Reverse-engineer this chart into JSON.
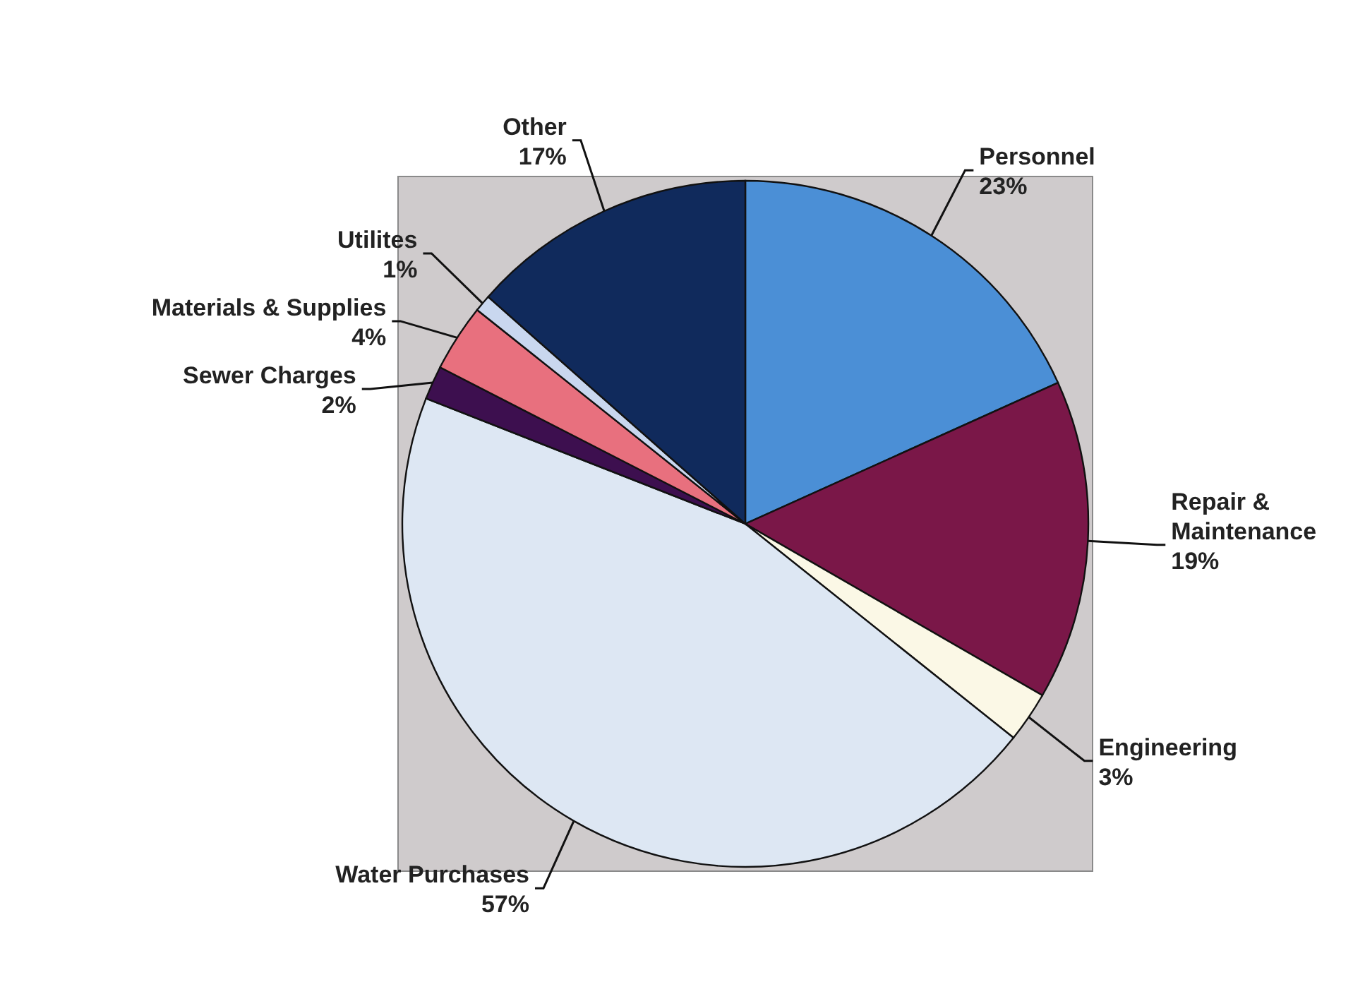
{
  "chart_data": {
    "type": "pie",
    "categories": [
      "Personnel",
      "Repair & Maintenance",
      "Engineering",
      "Water Purchases",
      "Sewer Charges",
      "Materials & Supplies",
      "Utilites",
      "Other"
    ],
    "values": [
      23,
      19,
      3,
      57,
      2,
      4,
      1,
      17
    ],
    "colors": [
      "#4b8fd6",
      "#7a1748",
      "#fbf8e6",
      "#dde7f3",
      "#3d0f4f",
      "#e8707e",
      "#c9d7ef",
      "#102a5c"
    ],
    "value_labels": [
      "23%",
      "19%",
      "3%",
      "57%",
      "2%",
      "4%",
      "1%",
      "17%"
    ]
  }
}
